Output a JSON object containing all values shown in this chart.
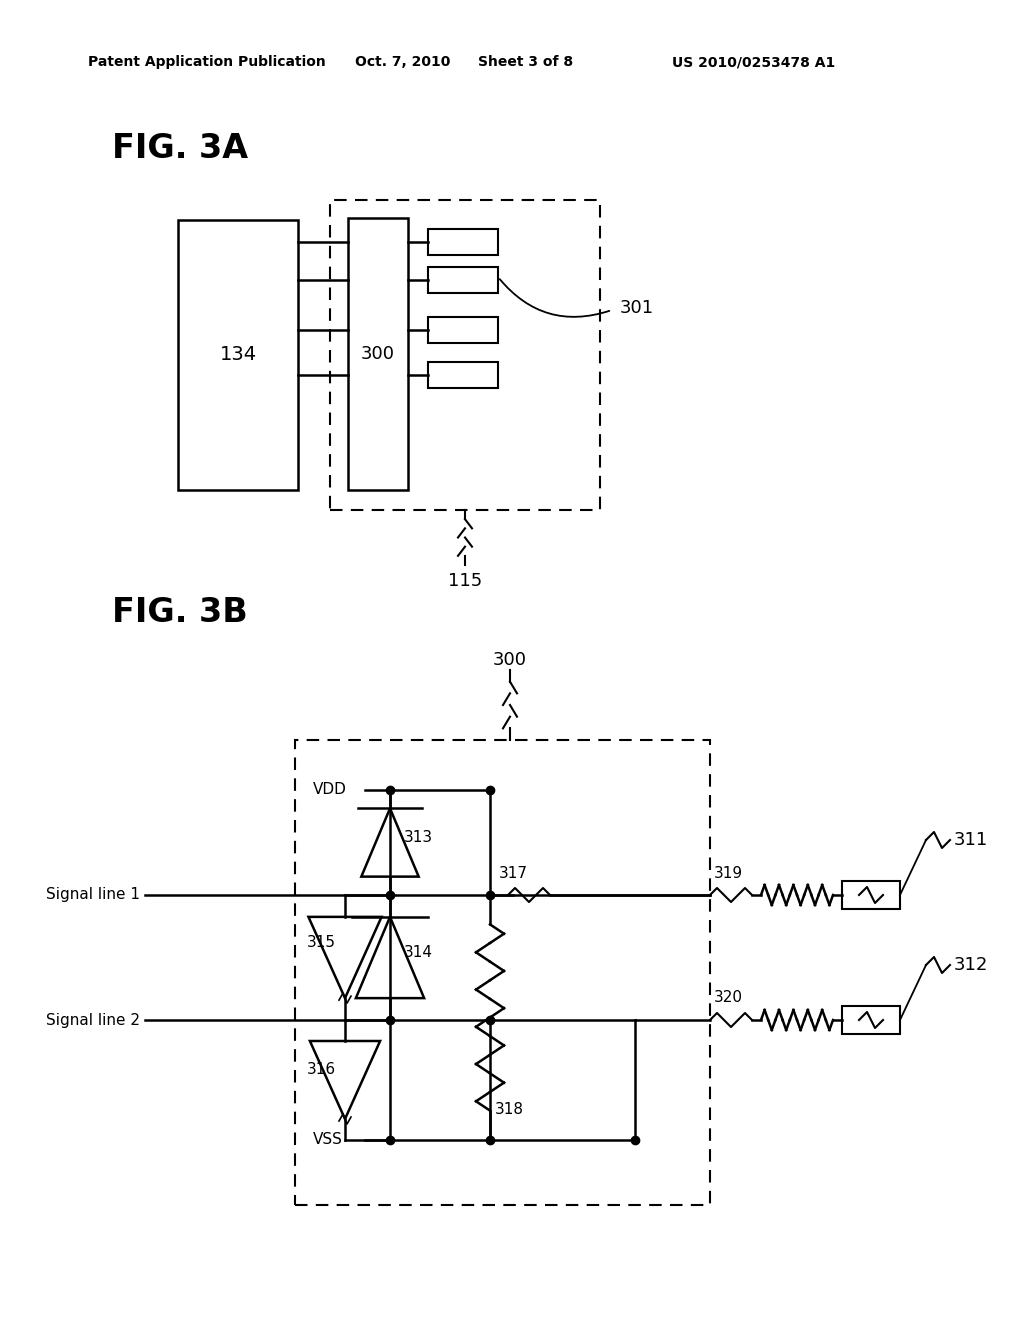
{
  "bg_color": "#ffffff",
  "header_text": "Patent Application Publication",
  "header_date": "Oct. 7, 2010",
  "header_sheet": "Sheet 3 of 8",
  "header_patent": "US 2010/0253478 A1",
  "fig3a_label": "FIG. 3A",
  "fig3b_label": "FIG. 3B",
  "label_134": "134",
  "label_300_3a": "300",
  "label_300_3b": "300",
  "label_301": "301",
  "label_115": "115",
  "label_311": "311",
  "label_312": "312",
  "label_313": "313",
  "label_314": "314",
  "label_315": "315",
  "label_316": "316",
  "label_317": "317",
  "label_318": "318",
  "label_319": "319",
  "label_320": "320",
  "label_vdd": "VDD",
  "label_vss": "VSS",
  "label_sig1": "Signal line 1",
  "label_sig2": "Signal line 2"
}
